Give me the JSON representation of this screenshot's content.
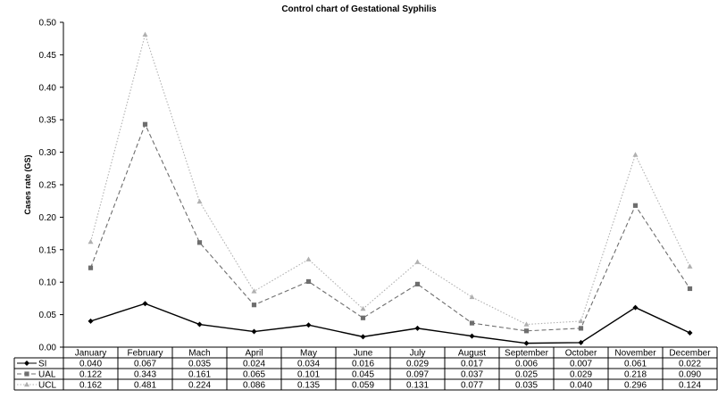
{
  "chart_data": {
    "type": "line",
    "title": "Control chart of Gestational  Syphilis",
    "ylabel": "Cases rate (GS)",
    "ylim": [
      0,
      0.5
    ],
    "yticks": [
      "0.00",
      "0.05",
      "0.10",
      "0.15",
      "0.20",
      "0.25",
      "0.30",
      "0.35",
      "0.40",
      "0.45",
      "0.50"
    ],
    "categories": [
      "January",
      "February",
      "Mach",
      "April",
      "May",
      "June",
      "July",
      "August",
      "September",
      "October",
      "November",
      "December"
    ],
    "series": [
      {
        "name": "SI",
        "color": "#000000",
        "marker": "diamond",
        "style": "solid",
        "values": [
          0.04,
          0.067,
          0.035,
          0.024,
          0.034,
          0.016,
          0.029,
          0.017,
          0.006,
          0.007,
          0.061,
          0.022
        ],
        "labels": [
          "0.040",
          "0.067",
          "0.035",
          "0.024",
          "0.034",
          "0.016",
          "0.029",
          "0.017",
          "0.006",
          "0.007",
          "0.061",
          "0.022"
        ]
      },
      {
        "name": "UAL",
        "color": "#6e6e6e",
        "marker": "square",
        "style": "dashed",
        "values": [
          0.122,
          0.343,
          0.161,
          0.065,
          0.101,
          0.045,
          0.097,
          0.037,
          0.025,
          0.029,
          0.218,
          0.09
        ],
        "labels": [
          "0.122",
          "0.343",
          "0.161",
          "0.065",
          "0.101",
          "0.045",
          "0.097",
          "0.037",
          "0.025",
          "0.029",
          "0.218",
          "0.090"
        ]
      },
      {
        "name": "UCL",
        "color": "#b0b0b0",
        "marker": "triangle",
        "style": "dotted",
        "values": [
          0.162,
          0.481,
          0.224,
          0.086,
          0.135,
          0.059,
          0.131,
          0.077,
          0.035,
          0.04,
          0.296,
          0.124
        ],
        "labels": [
          "0.162",
          "0.481",
          "0.224",
          "0.086",
          "0.135",
          "0.059",
          "0.131",
          "0.077",
          "0.035",
          "0.040",
          "0.296",
          "0.124"
        ]
      }
    ],
    "grid": false,
    "legend": "data-table"
  }
}
